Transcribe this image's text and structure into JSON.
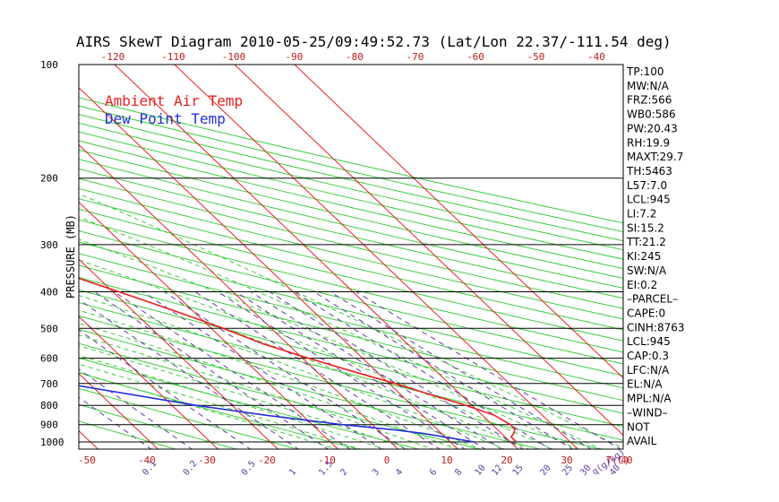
{
  "chart_data": {
    "type": "line",
    "title": "AIRS SkewT Diagram 2010-05-25/09:49:52.73 (Lat/Lon 22.37/-111.54 deg)",
    "xlabel": "T(C)",
    "ylabel": "PRESSURE (MB)",
    "mixing_ratio_unit": "q(g/kg)",
    "pressure_ticks": [
      100,
      200,
      300,
      400,
      500,
      600,
      700,
      800,
      900,
      1000
    ],
    "bottom_temp_ticks": [
      -50,
      -40,
      -30,
      -20,
      -10,
      0,
      10,
      20,
      30,
      40
    ],
    "top_temp_ticks": [
      -120,
      -110,
      -100,
      -90,
      -80,
      -70,
      -60,
      -50,
      -40
    ],
    "mixing_ratio_ticks": [
      "0.1",
      "0.2",
      "0.5",
      "1",
      "1.5",
      "2",
      "3",
      "4",
      "6",
      "8",
      "10",
      "12",
      "15",
      "20",
      "25",
      "30",
      "40"
    ],
    "legend": [
      {
        "label": "Ambient Air Temp",
        "color": "#e8201f"
      },
      {
        "label": "Dew Point Temp",
        "color": "#2430d8"
      }
    ],
    "series": [
      {
        "name": "Ambient Air Temp",
        "color": "#e8201f",
        "points": [
          {
            "p": 1000,
            "t": 21
          },
          {
            "p": 970,
            "t": 21
          },
          {
            "p": 950,
            "t": 22
          },
          {
            "p": 925,
            "t": 23
          },
          {
            "p": 900,
            "t": 23
          },
          {
            "p": 850,
            "t": 22
          },
          {
            "p": 800,
            "t": 19
          },
          {
            "p": 750,
            "t": 15
          },
          {
            "p": 700,
            "t": 11
          },
          {
            "p": 650,
            "t": 6
          },
          {
            "p": 600,
            "t": 1
          },
          {
            "p": 550,
            "t": -4
          },
          {
            "p": 500,
            "t": -8
          },
          {
            "p": 450,
            "t": -13
          },
          {
            "p": 400,
            "t": -19
          },
          {
            "p": 350,
            "t": -26
          },
          {
            "p": 300,
            "t": -34
          },
          {
            "p": 250,
            "t": -43
          },
          {
            "p": 200,
            "t": -53
          },
          {
            "p": 160,
            "t": -62
          },
          {
            "p": 130,
            "t": -66
          },
          {
            "p": 115,
            "t": -67
          },
          {
            "p": 100,
            "t": -70
          }
        ]
      },
      {
        "name": "Dew Point Temp",
        "color": "#2430d8",
        "points": [
          {
            "p": 1000,
            "t": 14
          },
          {
            "p": 950,
            "t": 7
          },
          {
            "p": 930,
            "t": 3
          },
          {
            "p": 900,
            "t": -5
          },
          {
            "p": 850,
            "t": -16
          },
          {
            "p": 800,
            "t": -26
          },
          {
            "p": 700,
            "t": -44
          },
          {
            "p": 600,
            "t": -54
          },
          {
            "p": 500,
            "t": -41
          },
          {
            "p": 400,
            "t": -27
          },
          {
            "p": 300,
            "t": -36
          },
          {
            "p": 250,
            "t": -49
          },
          {
            "p": 200,
            "t": -63
          },
          {
            "p": 160,
            "t": -74
          },
          {
            "p": 130,
            "t": -78
          },
          {
            "p": 115,
            "t": -78
          },
          {
            "p": 100,
            "t": -80
          }
        ]
      }
    ],
    "grid": true
  },
  "side_panel": [
    "TP:100",
    "MW:N/A",
    "FRZ:566",
    "WB0:586",
    "PW:20.43",
    "RH:19.9",
    "MAXT:29.7",
    "TH:5463",
    "L57:7.0",
    "LCL:945",
    "LI:7.2",
    "SI:15.2",
    "TT:21.2",
    "KI:245",
    "SW:N/A",
    "EI:0.2",
    "–PARCEL–",
    "CAPE:0",
    "CINH:8763",
    "LCL:945",
    "CAP:0.3",
    "LFC:N/A",
    "EL:N/A",
    "MPL:N/A",
    "–WIND–",
    "NOT",
    "AVAIL"
  ]
}
